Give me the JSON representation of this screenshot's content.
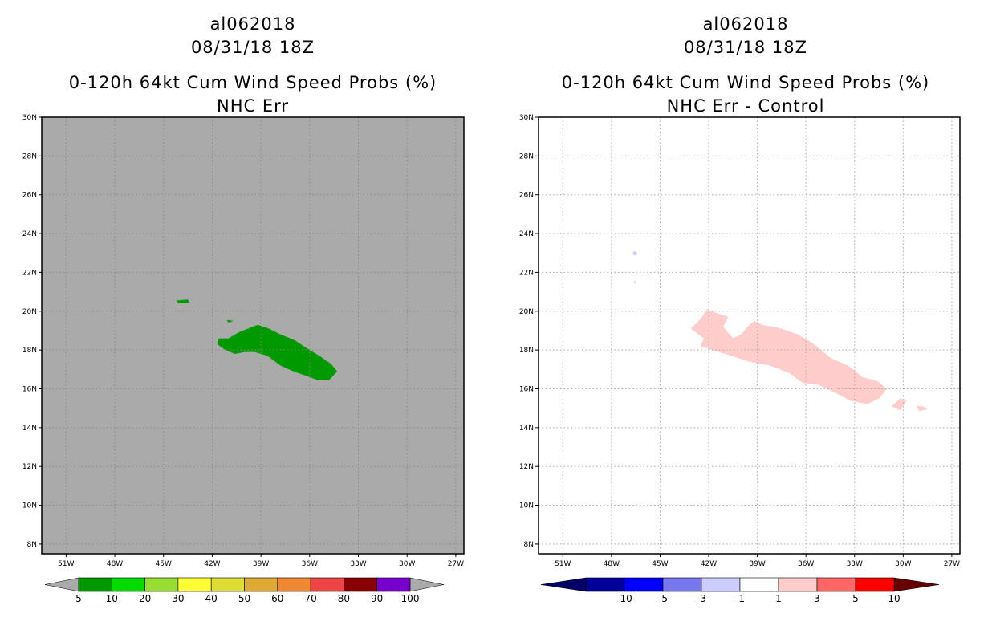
{
  "left": {
    "title_lines": [
      "al062018",
      "08/31/18 18Z",
      "0-120h 64kt Cum Wind Speed Probs (%)",
      "NHC Err"
    ],
    "lat_labels": [
      "30N",
      "28N",
      "26N",
      "24N",
      "22N",
      "20N",
      "18N",
      "16N",
      "14N",
      "12N",
      "10N",
      "8N"
    ],
    "lon_labels": [
      "51W",
      "48W",
      "45W",
      "42W",
      "39W",
      "36W",
      "33W",
      "30W",
      "27W"
    ],
    "colorbar": {
      "labels": [
        "5",
        "10",
        "20",
        "30",
        "40",
        "50",
        "60",
        "70",
        "80",
        "90",
        "100"
      ],
      "colors": [
        "#009900",
        "#00dd00",
        "#99dd33",
        "#ffff33",
        "#dddd33",
        "#ddaa33",
        "#ee8833",
        "#ee4444",
        "#880000",
        "#7700cc"
      ],
      "end_color": "#aaaaaa"
    },
    "background_color": "#aaaaaa",
    "shade_color": "#009900"
  },
  "right": {
    "title_lines": [
      "al062018",
      "08/31/18 18Z",
      "0-120h 64kt Cum Wind Speed Probs (%)",
      "NHC Err - Control"
    ],
    "lat_labels": [
      "30N",
      "28N",
      "26N",
      "24N",
      "22N",
      "20N",
      "18N",
      "16N",
      "14N",
      "12N",
      "10N",
      "8N"
    ],
    "lon_labels": [
      "51W",
      "48W",
      "45W",
      "42W",
      "39W",
      "36W",
      "33W",
      "30W",
      "27W"
    ],
    "colorbar": {
      "labels": [
        "-10",
        "-5",
        "-3",
        "-1",
        "1",
        "3",
        "5",
        "10"
      ],
      "colors": [
        "#000099",
        "#0000ff",
        "#7777ee",
        "#ccccff",
        "#ffffff",
        "#ffcccc",
        "#ff6666",
        "#ff0000"
      ],
      "end_left": "#000066",
      "end_right": "#660000"
    },
    "background_color": "#ffffff",
    "pos_color": "#ffcccc",
    "neg_color": "#ccccff"
  },
  "chart_data": [
    {
      "type": "heatmap",
      "title": "al062018 08/31/18 18Z 0-120h 64kt Cum Wind Speed Probs (%) NHC Err",
      "x_range": [
        -52.5,
        -26.5
      ],
      "y_range": [
        7.5,
        30
      ],
      "x_ticks": [
        -51,
        -48,
        -45,
        -42,
        -39,
        -36,
        -33,
        -30,
        -27
      ],
      "y_ticks": [
        30,
        28,
        26,
        24,
        22,
        20,
        18,
        16,
        14,
        12,
        10,
        8
      ],
      "grid": true,
      "regions": [
        {
          "level": "5-10",
          "polygon": [
            [
              -44.2,
              20.55
            ],
            [
              -43.5,
              20.6
            ],
            [
              -43.4,
              20.45
            ],
            [
              -44.1,
              20.4
            ]
          ]
        },
        {
          "level": "5-10",
          "polygon": [
            [
              -41.1,
              19.55
            ],
            [
              -40.7,
              19.5
            ],
            [
              -41.0,
              19.4
            ]
          ]
        },
        {
          "level": "5-10",
          "polygon": [
            [
              -41.6,
              18.6
            ],
            [
              -41.0,
              18.6
            ],
            [
              -40.4,
              18.9
            ],
            [
              -39.8,
              19.1
            ],
            [
              -39.2,
              19.3
            ],
            [
              -38.5,
              19.1
            ],
            [
              -37.8,
              18.8
            ],
            [
              -36.9,
              18.5
            ],
            [
              -36.2,
              18.1
            ],
            [
              -35.4,
              17.7
            ],
            [
              -34.7,
              17.3
            ],
            [
              -34.3,
              16.9
            ],
            [
              -34.8,
              16.45
            ],
            [
              -35.5,
              16.45
            ],
            [
              -36.3,
              16.7
            ],
            [
              -37.0,
              16.9
            ],
            [
              -37.8,
              17.2
            ],
            [
              -38.6,
              17.7
            ],
            [
              -39.4,
              17.9
            ],
            [
              -40.0,
              17.9
            ],
            [
              -40.6,
              17.8
            ],
            [
              -41.2,
              18.0
            ],
            [
              -41.7,
              18.3
            ]
          ]
        }
      ]
    },
    {
      "type": "heatmap",
      "title": "al062018 08/31/18 18Z 0-120h 64kt Cum Wind Speed Probs (%) NHC Err - Control",
      "x_range": [
        -52.5,
        -26.5
      ],
      "y_range": [
        7.5,
        30
      ],
      "x_ticks": [
        -51,
        -48,
        -45,
        -42,
        -39,
        -36,
        -33,
        -30,
        -27
      ],
      "y_ticks": [
        30,
        28,
        26,
        24,
        22,
        20,
        18,
        16,
        14,
        12,
        10,
        8
      ],
      "grid": true,
      "regions": [
        {
          "level": "-3 to -1",
          "polygon": [
            [
              -46.6,
              23.1
            ],
            [
              -46.4,
              23.0
            ],
            [
              -46.5,
              22.85
            ],
            [
              -46.7,
              22.95
            ]
          ]
        },
        {
          "level": "-3 to -1",
          "polygon": [
            [
              -46.6,
              21.6
            ],
            [
              -46.5,
              21.5
            ],
            [
              -46.6,
              21.4
            ]
          ]
        },
        {
          "level": "1 to 3",
          "polygon": [
            [
              -43.1,
              19.1
            ],
            [
              -42.5,
              19.6
            ],
            [
              -42.1,
              20.1
            ],
            [
              -41.5,
              19.9
            ],
            [
              -40.8,
              19.7
            ],
            [
              -41.1,
              19.2
            ],
            [
              -40.5,
              18.6
            ],
            [
              -40.0,
              18.8
            ],
            [
              -39.6,
              19.2
            ],
            [
              -39.2,
              19.5
            ],
            [
              -38.7,
              19.3
            ],
            [
              -37.5,
              19.1
            ],
            [
              -36.5,
              18.8
            ],
            [
              -35.5,
              18.3
            ],
            [
              -34.5,
              17.6
            ],
            [
              -33.4,
              17.2
            ],
            [
              -32.5,
              16.6
            ],
            [
              -31.6,
              16.4
            ],
            [
              -31.0,
              16.0
            ],
            [
              -31.5,
              15.5
            ],
            [
              -32.2,
              15.2
            ],
            [
              -33.3,
              15.4
            ],
            [
              -34.2,
              15.8
            ],
            [
              -35.2,
              16.2
            ],
            [
              -36.2,
              16.3
            ],
            [
              -37.0,
              16.8
            ],
            [
              -38.2,
              17.2
            ],
            [
              -39.5,
              17.4
            ],
            [
              -40.6,
              17.7
            ],
            [
              -41.8,
              18.0
            ],
            [
              -42.5,
              18.2
            ],
            [
              -42.3,
              18.6
            ]
          ]
        },
        {
          "level": "1 to 3",
          "polygon": [
            [
              -30.7,
              15.1
            ],
            [
              -30.2,
              15.5
            ],
            [
              -29.8,
              15.4
            ],
            [
              -30.2,
              14.9
            ]
          ]
        },
        {
          "level": "1 to 3",
          "polygon": [
            [
              -29.2,
              15.1
            ],
            [
              -28.8,
              15.1
            ],
            [
              -28.5,
              14.95
            ],
            [
              -29.0,
              14.85
            ]
          ]
        }
      ]
    }
  ]
}
